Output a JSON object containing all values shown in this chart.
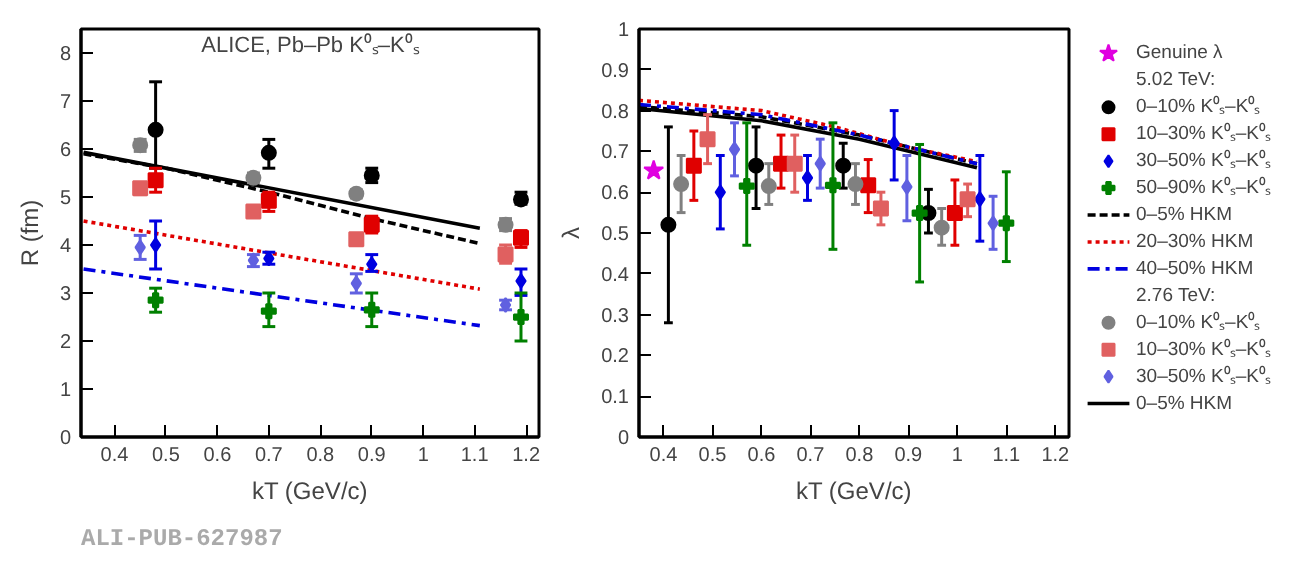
{
  "chart_data": [
    {
      "type": "scatter",
      "ylabel": "R (fm)",
      "xlabel": "kT (GeV/c)",
      "xlim": [
        0.335,
        1.225
      ],
      "ylim": [
        0,
        8.5
      ],
      "xticks": [
        {
          "value": 0.4,
          "label": "0.4"
        },
        {
          "value": 0.5,
          "label": "0.5"
        },
        {
          "value": 0.6,
          "label": "0.6"
        },
        {
          "value": 0.7,
          "label": "0.7"
        },
        {
          "value": 0.8,
          "label": "0.8"
        },
        {
          "value": 0.9,
          "label": "0.9"
        },
        {
          "value": 1,
          "label": "1"
        },
        {
          "value": 1.1,
          "label": "1.1"
        },
        {
          "value": 1.2,
          "label": "1.2"
        }
      ],
      "yticks": [
        0,
        1,
        2,
        3,
        4,
        5,
        6,
        7,
        8
      ],
      "annotations": [
        "ALICE, Pb–Pb K⁰ₛ–K⁰ₛ",
        "ALI-PUB-627987"
      ],
      "series": [
        {
          "type": "scatter",
          "marker": "circle",
          "color": "#000000",
          "x": [
            0.48,
            0.7,
            0.9,
            1.19
          ],
          "values": [
            6.4,
            5.92,
            5.45,
            4.95
          ],
          "errors": [
            [
              5.6,
              7.4
            ],
            [
              5.6,
              6.2
            ],
            [
              5.3,
              5.6
            ],
            [
              4.85,
              5.1
            ]
          ]
        },
        {
          "type": "scatter",
          "marker": "square",
          "color": "#e00000",
          "x": [
            0.48,
            0.7,
            0.9,
            1.19
          ],
          "values": [
            5.35,
            4.92,
            4.42,
            4.15
          ],
          "errors": [
            [
              5.1,
              5.6
            ],
            [
              4.7,
              5.1
            ],
            [
              4.25,
              4.6
            ],
            [
              3.95,
              4.3
            ]
          ]
        },
        {
          "type": "scatter",
          "marker": "diamond",
          "color": "#0000e0",
          "x": [
            0.48,
            0.7,
            0.9,
            1.19
          ],
          "values": [
            4.0,
            3.72,
            3.6,
            3.25
          ],
          "errors": [
            [
              3.5,
              4.5
            ],
            [
              3.6,
              3.85
            ],
            [
              3.45,
              3.8
            ],
            [
              2.95,
              3.5
            ]
          ]
        },
        {
          "type": "scatter",
          "marker": "cross",
          "color": "#008000",
          "x": [
            0.48,
            0.7,
            0.9,
            1.19
          ],
          "values": [
            2.85,
            2.62,
            2.65,
            2.5
          ],
          "errors": [
            [
              2.6,
              3.1
            ],
            [
              2.3,
              3.0
            ],
            [
              2.3,
              3.0
            ],
            [
              2.0,
              3.0
            ]
          ]
        },
        {
          "type": "line",
          "line_style": "dashed",
          "color": "#000000",
          "x": [
            0.34,
            0.5,
            0.7,
            0.9,
            1.11
          ],
          "values": [
            5.9,
            5.6,
            5.1,
            4.55,
            4.03
          ]
        },
        {
          "type": "line",
          "line_style": "dotted",
          "color": "#e00000",
          "x": [
            0.34,
            1.11
          ],
          "values": [
            4.5,
            3.08
          ]
        },
        {
          "type": "line",
          "line_style": "dashdot",
          "color": "#0000e0",
          "x": [
            0.34,
            1.11
          ],
          "values": [
            3.5,
            2.32
          ]
        },
        {
          "type": "scatter",
          "marker": "circle",
          "color": "#808080",
          "x": [
            0.45,
            0.67,
            0.87,
            1.16
          ],
          "values": [
            6.08,
            5.4,
            5.07,
            4.42
          ],
          "errors": [
            [
              5.95,
              6.2
            ],
            [
              5.3,
              5.5
            ],
            [
              4.98,
              5.15
            ],
            [
              4.3,
              4.55
            ]
          ]
        },
        {
          "type": "scatter",
          "marker": "square",
          "color": "#e06060",
          "x": [
            0.45,
            0.67,
            0.87,
            1.16
          ],
          "values": [
            5.18,
            4.7,
            4.12,
            3.8
          ],
          "errors": [
            [
              5.05,
              5.3
            ],
            [
              4.6,
              4.8
            ],
            [
              4.02,
              4.22
            ],
            [
              3.62,
              4.0
            ]
          ]
        },
        {
          "type": "scatter",
          "marker": "diamond",
          "color": "#6060e0",
          "x": [
            0.45,
            0.67,
            0.87,
            1.16
          ],
          "values": [
            3.95,
            3.68,
            3.2,
            2.75
          ],
          "errors": [
            [
              3.7,
              4.2
            ],
            [
              3.55,
              3.8
            ],
            [
              3.0,
              3.4
            ],
            [
              2.65,
              2.85
            ]
          ]
        },
        {
          "type": "line",
          "line_style": "solid",
          "color": "#000000",
          "x": [
            0.34,
            1.11
          ],
          "values": [
            5.93,
            4.35
          ]
        }
      ]
    },
    {
      "type": "scatter",
      "ylabel": "λ",
      "xlabel": "kT (GeV/c)",
      "xlim": [
        0.35,
        1.228
      ],
      "ylim": [
        0,
        1
      ],
      "legend": "right",
      "xticks": [
        {
          "value": 0.4,
          "label": "0.4"
        },
        {
          "value": 0.5,
          "label": "0.5"
        },
        {
          "value": 0.6,
          "label": "0.6"
        },
        {
          "value": 0.7,
          "label": "0.7"
        },
        {
          "value": 0.8,
          "label": "0.8"
        },
        {
          "value": 0.9,
          "label": "0.9"
        },
        {
          "value": 1,
          "label": "1"
        },
        {
          "value": 1.1,
          "label": "1.1"
        },
        {
          "value": 1.2,
          "label": "1.2"
        }
      ],
      "yticks": [
        0,
        0.1,
        0.2,
        0.3,
        0.4,
        0.5,
        0.6,
        0.7,
        0.8,
        0.9,
        1
      ],
      "annotations": [
        "5.02 TeV:",
        "2.76 TeV:"
      ],
      "series": [
        {
          "type": "scatter",
          "marker": "star",
          "name": "Genuine λ",
          "color": "#e000e0",
          "x": [
            0.38
          ],
          "values": [
            0.653
          ]
        },
        {
          "type": "scatter",
          "marker": "circle",
          "name": "0–10% K⁰ₛ–K⁰ₛ",
          "color": "#000000",
          "x": [
            0.41,
            0.589,
            0.767,
            0.941
          ],
          "values": [
            0.52,
            0.665,
            0.665,
            0.549
          ],
          "errors": [
            [
              0.28,
              0.76
            ],
            [
              0.56,
              0.76
            ],
            [
              0.61,
              0.72
            ],
            [
              0.5,
              0.607
            ]
          ]
        },
        {
          "type": "scatter",
          "marker": "square",
          "name": "10–30% K⁰ₛ–K⁰ₛ",
          "color": "#e00000",
          "x": [
            0.462,
            0.64,
            0.818,
            0.995
          ],
          "values": [
            0.665,
            0.67,
            0.617,
            0.549
          ],
          "errors": [
            [
              0.58,
              0.75
            ],
            [
              0.61,
              0.74
            ],
            [
              0.55,
              0.68
            ],
            [
              0.47,
              0.63
            ]
          ]
        },
        {
          "type": "scatter",
          "marker": "diamond",
          "name": "30–50% K⁰ₛ–K⁰ₛ",
          "color": "#0000e0",
          "x": [
            0.516,
            0.694,
            0.871,
            1.046
          ],
          "values": [
            0.6,
            0.635,
            0.72,
            0.583
          ],
          "errors": [
            [
              0.51,
              0.69
            ],
            [
              0.58,
              0.69
            ],
            [
              0.63,
              0.8
            ],
            [
              0.48,
              0.69
            ]
          ]
        },
        {
          "type": "scatter",
          "marker": "cross",
          "name": "50–90% K⁰ₛ–K⁰ₛ",
          "color": "#008000",
          "x": [
            0.57,
            0.746,
            0.923,
            1.1
          ],
          "values": [
            0.615,
            0.617,
            0.549,
            0.524
          ],
          "errors": [
            [
              0.47,
              0.77
            ],
            [
              0.46,
              0.77
            ],
            [
              0.38,
              0.717
            ],
            [
              0.43,
              0.65
            ]
          ]
        },
        {
          "type": "line",
          "line_style": "dashed",
          "name": "0–5% HKM",
          "color": "#000000",
          "x": [
            0.35,
            0.6,
            0.8,
            1.04
          ],
          "values": [
            0.81,
            0.785,
            0.74,
            0.67
          ]
        },
        {
          "type": "line",
          "line_style": "dotted",
          "name": "20–30% HKM",
          "color": "#e00000",
          "x": [
            0.35,
            0.6,
            0.75,
            0.9,
            1.04
          ],
          "values": [
            0.825,
            0.8,
            0.76,
            0.71,
            0.675
          ]
        },
        {
          "type": "line",
          "line_style": "dashdot",
          "name": "40–50% HKM",
          "color": "#0000e0",
          "x": [
            0.35,
            0.6,
            0.8,
            1.04
          ],
          "values": [
            0.815,
            0.79,
            0.74,
            0.67
          ]
        },
        {
          "type": "scatter",
          "marker": "circle",
          "name": "0–10% K⁰ₛ–K⁰ₛ",
          "color": "#808080",
          "x": [
            0.436,
            0.615,
            0.792,
            0.968
          ],
          "values": [
            0.62,
            0.615,
            0.62,
            0.513
          ],
          "errors": [
            [
              0.55,
              0.69
            ],
            [
              0.57,
              0.67
            ],
            [
              0.57,
              0.67
            ],
            [
              0.47,
              0.56
            ]
          ]
        },
        {
          "type": "scatter",
          "marker": "square",
          "name": "10–30% K⁰ₛ–K⁰ₛ",
          "color": "#e06060",
          "x": [
            0.49,
            0.668,
            0.844,
            1.021
          ],
          "values": [
            0.73,
            0.67,
            0.56,
            0.583
          ],
          "errors": [
            [
              0.67,
              0.79
            ],
            [
              0.6,
              0.74
            ],
            [
              0.52,
              0.6
            ],
            [
              0.54,
              0.62
            ]
          ]
        },
        {
          "type": "scatter",
          "marker": "diamond",
          "name": "30–50% K⁰ₛ–K⁰ₛ",
          "color": "#6060e0",
          "x": [
            0.545,
            0.72,
            0.897,
            1.073
          ],
          "values": [
            0.705,
            0.67,
            0.613,
            0.524
          ],
          "errors": [
            [
              0.64,
              0.77
            ],
            [
              0.61,
              0.73
            ],
            [
              0.53,
              0.69
            ],
            [
              0.46,
              0.59
            ]
          ]
        },
        {
          "type": "line",
          "line_style": "solid",
          "name": "0–5% HKM",
          "color": "#000000",
          "x": [
            0.35,
            0.6,
            0.8,
            1.04
          ],
          "values": [
            0.805,
            0.775,
            0.73,
            0.66
          ]
        }
      ]
    }
  ]
}
